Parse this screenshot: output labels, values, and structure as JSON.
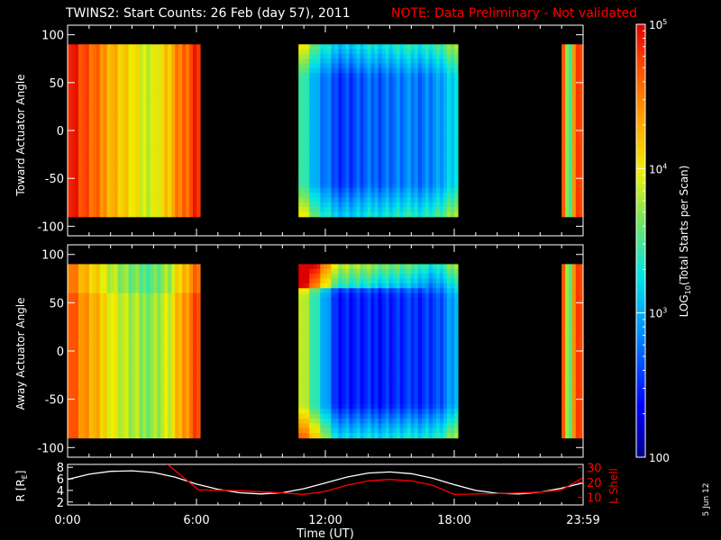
{
  "title": "TWINS2: Start Counts: 26 Feb (day  57), 2011",
  "note": "NOTE: Data Preliminary - Not validated",
  "date_stamp": "5 Jun 12",
  "colors": {
    "background": "#000000",
    "axes": "#ffffff",
    "note": "#ff0000",
    "r_line": "#ffffff",
    "lshell_line": "#ff0000"
  },
  "colorbar": {
    "label": "LOG10(Total Starts per Scan)",
    "label_base": "LOG",
    "label_sub": "10",
    "label_rest": "(Total Starts per Scan)",
    "tick_labels": [
      "10^5",
      "10^4",
      "10^3",
      "100"
    ],
    "tick_values": [
      100000,
      10000,
      1000,
      100
    ],
    "range": [
      100,
      100000
    ],
    "scale": "log"
  },
  "chart_data": [
    {
      "type": "heatmap",
      "ylabel": "Toward Actuator Angle",
      "ylim": [
        -110,
        110
      ],
      "y_ticks": [
        "100",
        "50",
        "0",
        "-50",
        "-100"
      ],
      "y_tick_values": [
        100,
        50,
        0,
        -50,
        -100
      ],
      "y_data_range": [
        -90,
        90
      ],
      "data_blocks": [
        {
          "start": "0:00",
          "end": "6:10",
          "level": "high",
          "profile": [
            5.0,
            4.7,
            4.5,
            4.3,
            4.1,
            3.9,
            3.95,
            4.2,
            4.6,
            4.9
          ]
        },
        {
          "start": "10:45",
          "end": "18:10",
          "level": "low",
          "profile": [
            3.6,
            2.9,
            2.6,
            2.6,
            2.7,
            2.75,
            2.8,
            2.8,
            2.9,
            3.2
          ]
        },
        {
          "start": "23:00",
          "end": "23:59",
          "level": "mixed",
          "profile": [
            4.8,
            3.0,
            4.9,
            4.6
          ]
        }
      ]
    },
    {
      "type": "heatmap",
      "ylabel": "Away Actuator Angle",
      "ylim": [
        -110,
        110
      ],
      "y_ticks": [
        "100",
        "50",
        "0",
        "-50",
        "-100"
      ],
      "y_tick_values": [
        100,
        50,
        0,
        -50,
        -100
      ],
      "y_data_range": [
        -90,
        90
      ],
      "data_blocks": [
        {
          "start": "0:00",
          "end": "6:10",
          "level": "high",
          "profile": [
            4.8,
            4.4,
            4.2,
            4.0,
            3.8,
            3.7,
            3.75,
            3.9,
            4.4,
            4.8
          ]
        },
        {
          "start": "10:45",
          "end": "18:10",
          "level": "low",
          "profile": [
            4.0,
            3.3,
            2.5,
            2.45,
            2.45,
            2.5,
            2.5,
            2.55,
            2.6,
            3.0
          ]
        },
        {
          "start": "23:00",
          "end": "23:59",
          "level": "mixed",
          "profile": [
            4.8,
            3.1,
            4.9,
            4.6
          ]
        }
      ]
    },
    {
      "type": "line",
      "ylabel": "R [RE]",
      "ylabel_base": "R [R",
      "ylabel_sub": "E",
      "ylabel_close": "]",
      "y2label": "L Shell",
      "ylim": [
        1.5,
        8.5
      ],
      "y_ticks": [
        "8",
        "6",
        "4",
        "2"
      ],
      "y_tick_values": [
        8,
        6,
        4,
        2
      ],
      "y2lim": [
        5,
        32
      ],
      "y2_ticks": [
        "30",
        "20",
        "10"
      ],
      "y2_tick_values": [
        30,
        20,
        10
      ],
      "xlabel": "Time (UT)",
      "x_ticks": [
        "0:00",
        "6:00",
        "12:00",
        "18:00",
        "23:59"
      ],
      "x_tick_values": [
        0,
        6,
        12,
        18,
        24
      ],
      "xlim": [
        0,
        24
      ],
      "series": [
        {
          "name": "R [RE]",
          "color": "#ffffff",
          "axis": "left",
          "x": [
            0,
            1,
            2,
            3,
            4,
            5,
            6,
            7,
            8,
            9,
            10,
            11,
            12,
            13,
            14,
            15,
            16,
            17,
            18,
            19,
            20,
            21,
            22,
            23,
            23.98
          ],
          "y": [
            5.9,
            6.8,
            7.3,
            7.4,
            7.1,
            6.3,
            5.1,
            4.2,
            3.6,
            3.4,
            3.6,
            4.3,
            5.3,
            6.3,
            7.0,
            7.2,
            6.9,
            6.1,
            5.0,
            4.0,
            3.5,
            3.4,
            3.7,
            4.4,
            5.3
          ]
        },
        {
          "name": "L Shell",
          "color": "#ff0000",
          "axis": "right",
          "x": [
            4.65,
            6.1,
            8,
            10,
            11,
            12,
            13,
            14,
            15,
            16,
            17,
            18,
            20,
            22,
            23,
            23.98
          ],
          "y": [
            32,
            15,
            14.5,
            13,
            12,
            14,
            18,
            21,
            22,
            21,
            18,
            12,
            12.5,
            13.5,
            15,
            23
          ]
        }
      ]
    }
  ]
}
